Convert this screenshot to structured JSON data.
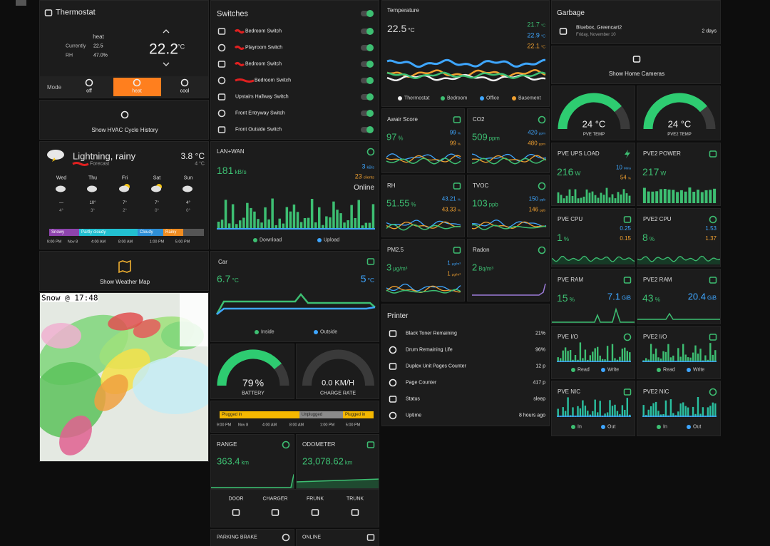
{
  "thermostat": {
    "title": "Thermostat",
    "hvac_action": "heat",
    "currently_label": "Currently",
    "currently": "22.5",
    "rh_label": "RH",
    "rh": "47.0%",
    "target": "22.2",
    "target_unit": "°C",
    "mode_label": "Mode",
    "modes": [
      "off",
      "heat",
      "cool"
    ]
  },
  "hvac": {
    "label": "Show HVAC Cycle History"
  },
  "weather": {
    "condition": "Lightning, rainy",
    "subtitle": "Forecast",
    "temp": "3.8 °C",
    "low": "4 °C",
    "days": [
      {
        "name": "Wed",
        "high": "—",
        "low": "4°"
      },
      {
        "name": "Thu",
        "high": "10°",
        "low": "3°"
      },
      {
        "name": "Fri",
        "high": "7°",
        "low": "2°"
      },
      {
        "name": "Sat",
        "high": "7°",
        "low": "0°"
      },
      {
        "name": "Sun",
        "high": "4°",
        "low": "0°"
      }
    ],
    "timeline": [
      "Snowy",
      "Partly cloudy",
      "Cloudy",
      "Rainy"
    ],
    "times": [
      "9:00 PM",
      "Nov 8",
      "4:00 AM",
      "8:00 AM",
      "1:00 PM",
      "5:00 PM"
    ]
  },
  "weather_map": {
    "label": "Show Weather Map",
    "radar_caption": "Snow @ 17:48"
  },
  "switches": {
    "title": "Switches",
    "items": [
      "Bedroom Switch",
      "Playroom Switch",
      "Bedroom Switch",
      "Bedroom Switch",
      "Upstairs Hallway Switch",
      "Front Entryway Switch",
      "Front Outside Switch"
    ]
  },
  "lan": {
    "title": "LAN+WAN",
    "download": {
      "value": "181",
      "unit": "kB/s"
    },
    "upload": {
      "value": "3",
      "unit": "kB/s"
    },
    "clients": {
      "value": "23",
      "unit": "clients"
    },
    "status": "Online",
    "legend": [
      "Download",
      "Upload"
    ]
  },
  "car": {
    "title": "Car",
    "inside": {
      "value": "6.7",
      "unit": "°C"
    },
    "outside": {
      "value": "5",
      "unit": "°C"
    },
    "legend": [
      "Inside",
      "Outside"
    ],
    "battery": {
      "value": "79",
      "unit": "%"
    },
    "battery_label": "BATTERY",
    "charge_rate": "0.0 KM/H",
    "charge_label": "CHARGE RATE",
    "charging_timeline": [
      "Plugged in",
      "Unplugged",
      "Plugged in"
    ],
    "times": [
      "9:00 PM",
      "Nov 8",
      "4:00 AM",
      "8:00 AM",
      "1:00 PM",
      "5:00 PM"
    ],
    "range_title": "RANGE",
    "range": {
      "value": "363.4",
      "unit": "km"
    },
    "odometer_title": "ODOMETER",
    "odometer": {
      "value": "23,078.62",
      "unit": "km"
    },
    "controls": [
      "DOOR",
      "CHARGER",
      "FRUNK",
      "TRUNK"
    ],
    "bottom": [
      "PARKING BRAKE",
      "ONLINE"
    ]
  },
  "temperature": {
    "title": "Temperature",
    "main": {
      "value": "22.5",
      "unit": "°C"
    },
    "side": [
      {
        "value": "21.7",
        "unit": "°C"
      },
      {
        "value": "22.9",
        "unit": "°C"
      },
      {
        "value": "22.1",
        "unit": "°C"
      }
    ],
    "legend": [
      "Thermostat",
      "Bedroom",
      "Office",
      "Basement"
    ]
  },
  "air": [
    {
      "title": "Awair Score",
      "main": {
        "value": "97",
        "unit": "%"
      },
      "side": [
        {
          "value": "99",
          "unit": "%"
        },
        {
          "value": "99",
          "unit": "%"
        }
      ]
    },
    {
      "title": "CO2",
      "main": {
        "value": "509",
        "unit": "ppm"
      },
      "side": [
        {
          "value": "420",
          "unit": "ppm"
        },
        {
          "value": "480",
          "unit": "ppm"
        }
      ]
    },
    {
      "title": "RH",
      "main": {
        "value": "51.55",
        "unit": "%"
      },
      "side": [
        {
          "value": "43.21",
          "unit": "%"
        },
        {
          "value": "43.33",
          "unit": "%"
        }
      ]
    },
    {
      "title": "TVOC",
      "main": {
        "value": "103",
        "unit": "ppb"
      },
      "side": [
        {
          "value": "150",
          "unit": "ppb"
        },
        {
          "value": "146",
          "unit": "ppb"
        }
      ]
    },
    {
      "title": "PM2.5",
      "main": {
        "value": "3",
        "unit": "µg/m³"
      },
      "side": [
        {
          "value": "1",
          "unit": "µg/m³"
        },
        {
          "value": "1",
          "unit": "µg/m³"
        }
      ]
    },
    {
      "title": "Radon",
      "main": {
        "value": "2",
        "unit": "Bq/m³"
      },
      "side": []
    }
  ],
  "printer": {
    "title": "Printer",
    "rows": [
      {
        "label": "Black Toner Remaining",
        "value": "21%"
      },
      {
        "label": "Drum Remaining Life",
        "value": "96%"
      },
      {
        "label": "Duplex Unit Pages Counter",
        "value": "12 p"
      },
      {
        "label": "Page Counter",
        "value": "417 p"
      },
      {
        "label": "Status",
        "value": "sleep"
      },
      {
        "label": "Uptime",
        "value": "8 hours ago"
      }
    ]
  },
  "garbage": {
    "title": "Garbage",
    "item": "Bluebox, Greencart2",
    "date": "Friday, November 10",
    "due": "2 days"
  },
  "cameras": {
    "label": "Show Home Cameras"
  },
  "server_temps": [
    {
      "value": "24 °C",
      "label": "PVE TEMP"
    },
    {
      "value": "24 °C",
      "label": "PVE2 TEMP"
    }
  ],
  "servers": [
    {
      "title": "PVE UPS LOAD",
      "main": {
        "value": "216",
        "unit": "W"
      },
      "side": [
        {
          "value": "10",
          "unit": "Mins"
        },
        {
          "value": "54",
          "unit": "%"
        }
      ]
    },
    {
      "title": "PVE2 POWER",
      "main": {
        "value": "217",
        "unit": "W"
      },
      "side": []
    },
    {
      "title": "PVE CPU",
      "main": {
        "value": "1",
        "unit": "%"
      },
      "side": [
        "0.25",
        "0.15"
      ]
    },
    {
      "title": "PVE2 CPU",
      "main": {
        "value": "8",
        "unit": "%"
      },
      "side": [
        "1.53",
        "1.37"
      ]
    },
    {
      "title": "PVE RAM",
      "main": {
        "value": "15",
        "unit": "%"
      },
      "side": [
        {
          "value": "7.1",
          "unit": "GiB"
        }
      ]
    },
    {
      "title": "PVE2 RAM",
      "main": {
        "value": "43",
        "unit": "%"
      },
      "side": [
        {
          "value": "20.4",
          "unit": "GiB"
        }
      ]
    },
    {
      "title": "PVE I/O",
      "legend": [
        "Read",
        "Write"
      ]
    },
    {
      "title": "PVE2 I/O",
      "legend": [
        "Read",
        "Write"
      ]
    },
    {
      "title": "PVE NIC",
      "legend": [
        "In",
        "Out"
      ]
    },
    {
      "title": "PVE2 NIC",
      "legend": [
        "In",
        "Out"
      ]
    }
  ]
}
